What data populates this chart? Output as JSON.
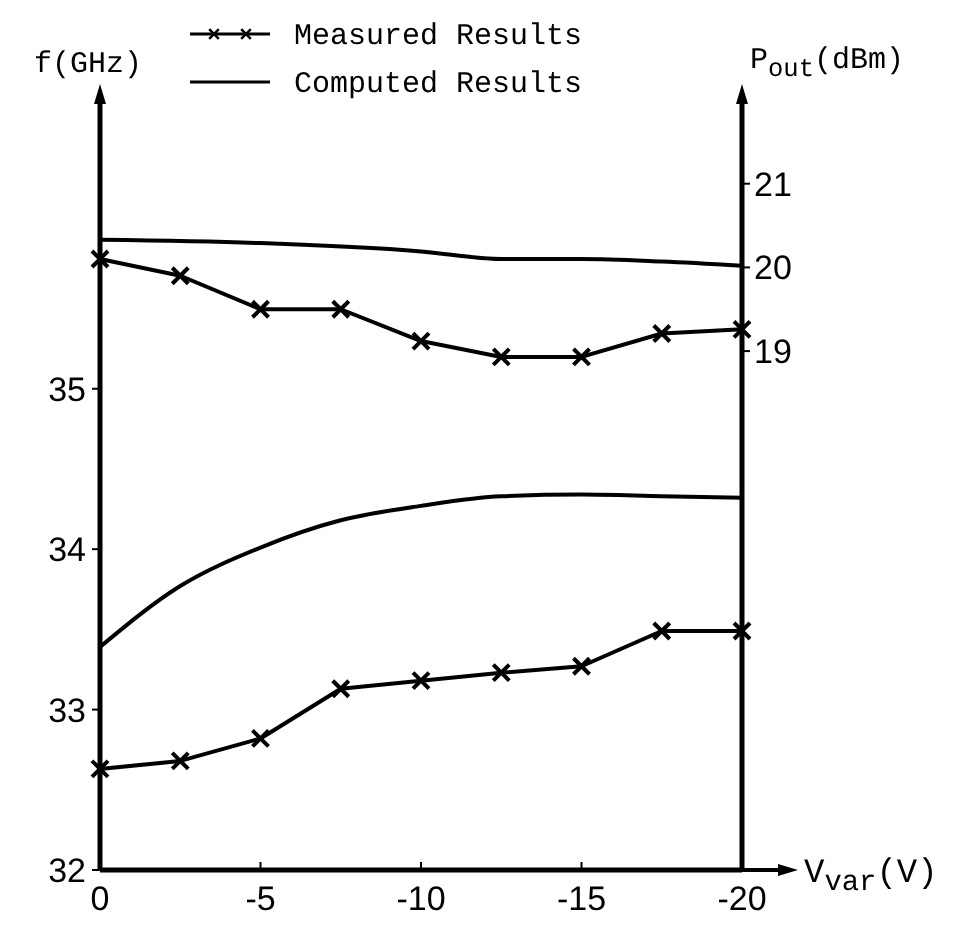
{
  "chart_data": {
    "type": "line",
    "xlabel": "V$_{var}$(V)",
    "ylabel": "f(GHz)",
    "y2label": "P$_{out}$(dBm)",
    "xlim": [
      0,
      -20
    ],
    "xticks": [
      0,
      -5,
      -10,
      -15,
      -20
    ],
    "ylim": [
      32,
      36.8
    ],
    "yticks": [
      32,
      33,
      34,
      35
    ],
    "y2lim": [
      12.8,
      22
    ],
    "y2ticks": [
      19,
      20,
      21
    ],
    "grid": false,
    "legend": "top",
    "line_style": "solid",
    "series": [
      {
        "name": "Measured Results",
        "color": "#000000",
        "marker": "cross",
        "x": [
          0,
          -2.5,
          -5,
          -7.5,
          -10,
          -12.5,
          -15,
          -17.5,
          -20
        ],
        "values": [
          32.63,
          32.68,
          32.82,
          33.13,
          33.18,
          33.23,
          33.27,
          33.49,
          33.49
        ]
      },
      {
        "name": "Computed Results",
        "color": "#000000",
        "marker": "none",
        "x": [
          0,
          -2.5,
          -5,
          -7.5,
          -10,
          -12.5,
          -15,
          -17.5,
          -20
        ],
        "values": [
          33.39,
          33.77,
          34.01,
          34.18,
          34.27,
          34.33,
          34.34,
          34.33,
          34.32
        ]
      },
      {
        "color": "#000000",
        "marker": "cross",
        "axis": "y2",
        "x": [
          0,
          -2.5,
          -5,
          -7.5,
          -10,
          -12.5,
          -15,
          -17.5,
          -20
        ],
        "values": [
          20.1,
          19.9,
          19.5,
          19.5,
          19.12,
          18.93,
          18.93,
          19.21,
          19.26
        ]
      },
      {
        "color": "#000000",
        "marker": "none",
        "axis": "y2",
        "x": [
          0,
          -5,
          -10,
          -12.5,
          -15,
          -17.5,
          -20
        ],
        "values": [
          20.33,
          20.29,
          20.19,
          20.1,
          20.1,
          20.07,
          20.02
        ]
      }
    ]
  }
}
